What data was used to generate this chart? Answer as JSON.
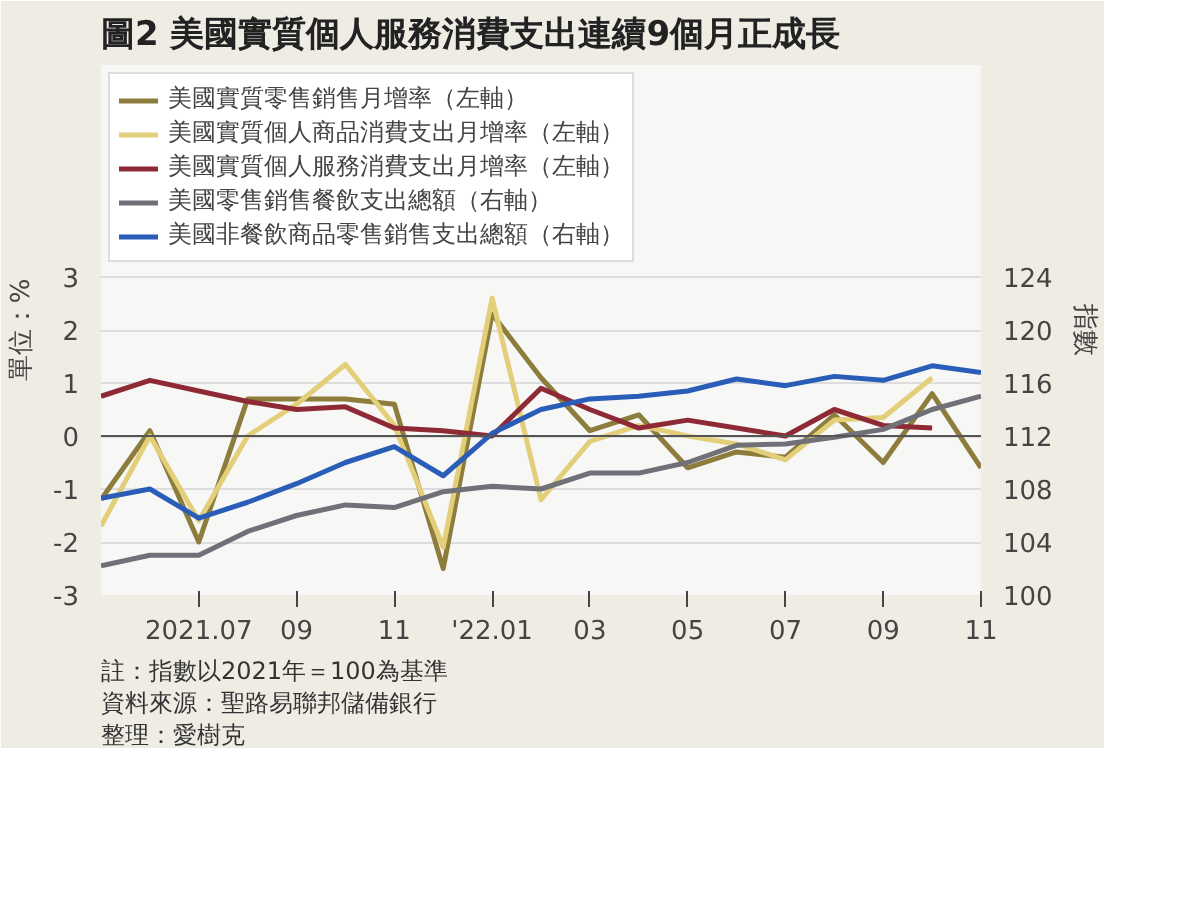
{
  "chart_data": {
    "type": "line",
    "title": "圖2 美國實質個人服務消費支出連續9個月正成長",
    "ylabel": "單位：%",
    "y2label": "指數",
    "x": [
      "2021-05",
      "2021-06",
      "2021-07",
      "2021-08",
      "2021-09",
      "2021-10",
      "2021-11",
      "2021-12",
      "2022-01",
      "2022-02",
      "2022-03",
      "2022-04",
      "2022-05",
      "2022-06",
      "2022-07",
      "2022-08",
      "2022-09",
      "2022-10",
      "2022-11"
    ],
    "series": [
      {
        "name": "美國實質零售銷售月增率（左軸）",
        "color": "#8c7d3c",
        "values": [
          -1.2,
          0.1,
          -2.0,
          0.7,
          0.7,
          0.7,
          0.6,
          -2.5,
          2.3,
          1.1,
          0.1,
          0.4,
          -0.6,
          -0.3,
          -0.4,
          0.4,
          -0.5,
          0.8,
          -0.6
        ]
      },
      {
        "name": "美國實質個人商品消費支出月增率（左軸）",
        "color": "#e3cf7a",
        "values": [
          -1.7,
          0.0,
          -1.6,
          0.0,
          0.6,
          1.35,
          0.2,
          -2.1,
          2.6,
          -1.2,
          -0.1,
          0.2,
          0.0,
          -0.15,
          -0.45,
          0.3,
          0.35,
          1.1,
          null
        ]
      },
      {
        "name": "美國實質個人服務消費支出月增率（左軸）",
        "color": "#8e2a36",
        "values": [
          0.75,
          1.05,
          0.85,
          0.65,
          0.5,
          0.55,
          0.15,
          0.1,
          0.0,
          0.9,
          0.5,
          0.15,
          0.3,
          0.15,
          0.0,
          0.5,
          0.2,
          0.15,
          null
        ]
      },
      {
        "name": "美國零售銷售餐飲支出總額（右軸）",
        "color": "#707078",
        "axis": "y2",
        "values": [
          102.2,
          103,
          103,
          104.8,
          106,
          106.8,
          106.6,
          107.8,
          108.2,
          108,
          109.2,
          109.2,
          110,
          111.3,
          111.4,
          111.9,
          112.5,
          114,
          115
        ]
      },
      {
        "name": "美國非餐飲商品零售銷售支出總額（右軸）",
        "color": "#2a5db8",
        "axis": "y2",
        "values": [
          107.3,
          108,
          105.8,
          107,
          108.4,
          110,
          111.2,
          109,
          112.2,
          114,
          114.8,
          115,
          115.4,
          116.3,
          115.8,
          116.5,
          116.2,
          117.3,
          116.8
        ]
      }
    ],
    "xlim": [
      "2021-05",
      "2022-11"
    ],
    "xticks": [
      {
        "value": "2021-07",
        "label": "2021.07"
      },
      {
        "value": "2021-09",
        "label": "09"
      },
      {
        "value": "2021-11",
        "label": "11"
      },
      {
        "value": "2022-01",
        "label": "'22.01"
      },
      {
        "value": "2022-03",
        "label": "03"
      },
      {
        "value": "2022-05",
        "label": "05"
      },
      {
        "value": "2022-07",
        "label": "07"
      },
      {
        "value": "2022-09",
        "label": "09"
      },
      {
        "value": "2022-11",
        "label": "11"
      }
    ],
    "ylim": [
      -3,
      7
    ],
    "yticks": [
      -3,
      -2,
      -1,
      0,
      1,
      2,
      3
    ],
    "y2lim": [
      100,
      140
    ],
    "y2ticks": [
      100,
      104,
      108,
      112,
      116,
      120,
      124
    ],
    "ref_lines": [
      {
        "axis": "y",
        "value": 0,
        "color": "#555555"
      }
    ],
    "grid": "y",
    "legend": "top",
    "marker": "none",
    "line_style": "solid",
    "annotations": [
      "註：指數以2021年＝100為基準",
      "資料來源：聖路易聯邦儲備銀行",
      "整理：愛樹克"
    ]
  }
}
